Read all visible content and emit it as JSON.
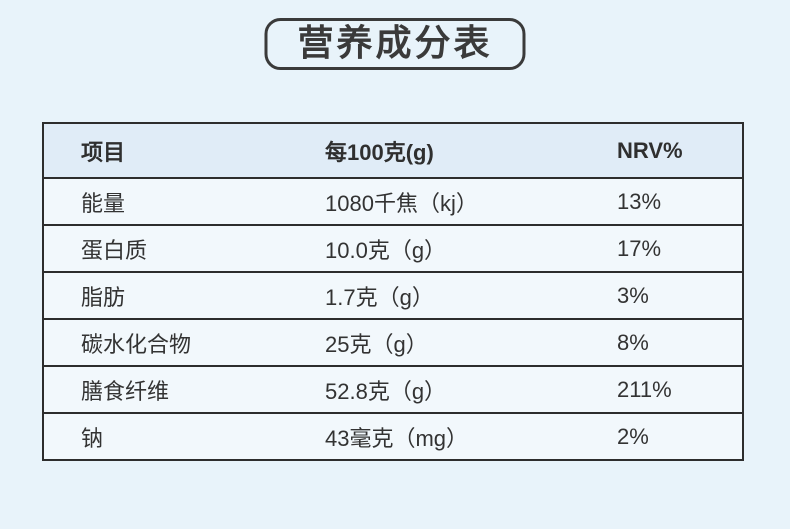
{
  "title": {
    "text": "营养成分表"
  },
  "table": {
    "headers": {
      "item": "项目",
      "value": "每100克(g)",
      "nrv": "NRV%"
    },
    "rows": [
      {
        "item": "能量",
        "value": "1080千焦（kj）",
        "nrv": "13%"
      },
      {
        "item": "蛋白质",
        "value": "10.0克（g）",
        "nrv": "17%"
      },
      {
        "item": "脂肪",
        "value": "1.7克（g）",
        "nrv": "3%"
      },
      {
        "item": "碳水化合物",
        "value": "25克（g）",
        "nrv": "8%"
      },
      {
        "item": "膳食纤维",
        "value": "52.8克（g）",
        "nrv": "211%"
      },
      {
        "item": "钠",
        "value": "43毫克（mg）",
        "nrv": "2%"
      }
    ]
  },
  "colors": {
    "page_background": "#e8f3fa",
    "header_row_background": "#e0ecf7",
    "data_row_background": "#f2f8fc",
    "border": "#2d2d2d",
    "text": "#333333"
  }
}
